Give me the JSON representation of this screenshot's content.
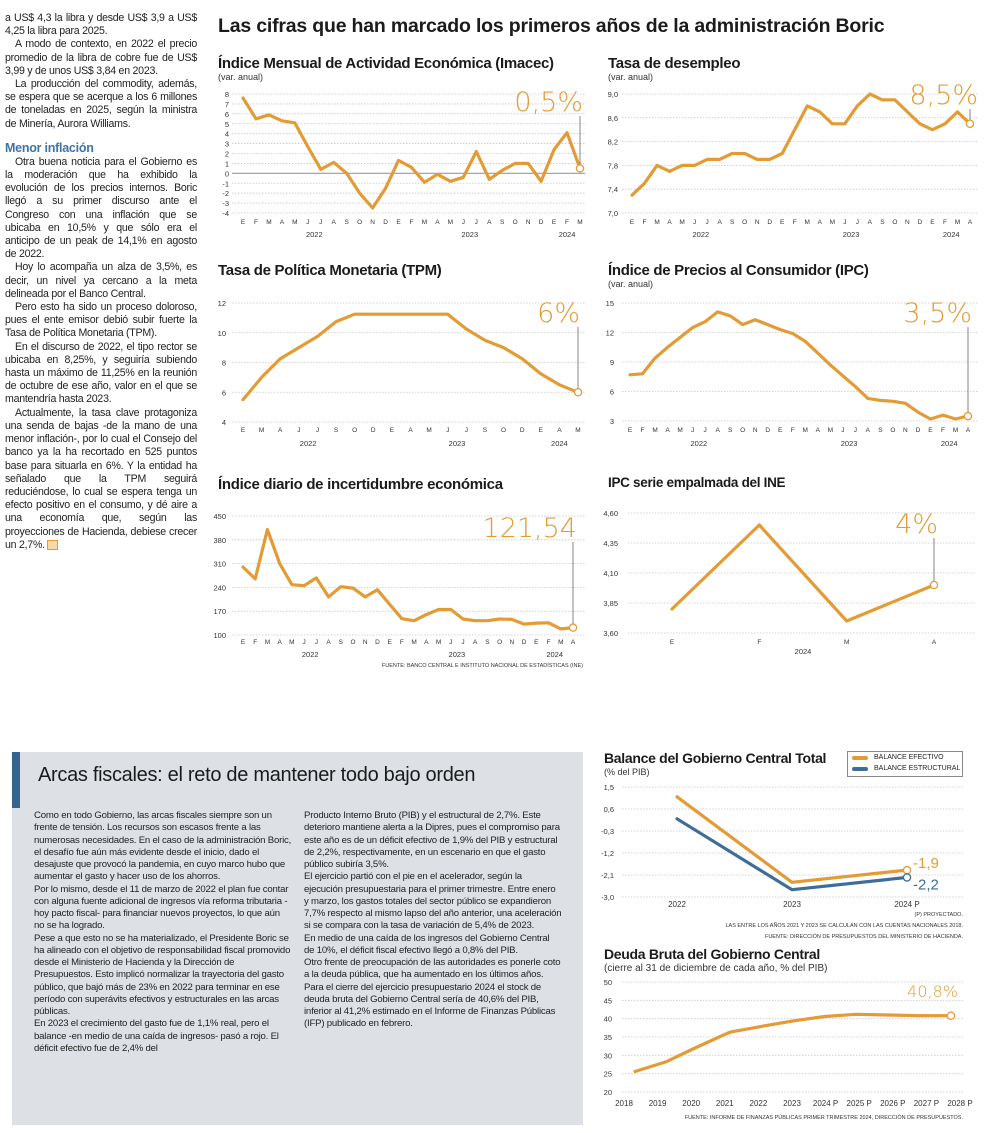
{
  "article": {
    "main_title": "Las cifras que han marcado los primeros años de la administración Boric",
    "left_column": {
      "paragraphs_top": [
        "a US$ 4,3 la libra y desde US$ 3,9 a US$ 4,25 la libra para 2025.",
        "A modo de contexto, en 2022 el precio promedio de la libra de cobre fue de US$ 3,99 y de unos US$ 3,84 en 2023.",
        "La producción del commodity, además, se espera que se acerque a los 6 millones de toneladas en 2025, según la ministra de Minería, Aurora Williams."
      ],
      "subheading": "Menor inflación",
      "paragraphs_bottom": [
        "Otra buena noticia para el Gobierno es la moderación que ha exhibido la evolución de los precios internos. Boric llegó a su primer discurso ante el Congreso con una inflación que se ubicaba en 10,5% y que sólo era el anticipo de un peak de 14,1% en agosto de 2022.",
        "Hoy lo acompaña un alza de 3,5%, es decir, un nivel ya cercano a la meta delineada por el Banco Central.",
        "Pero esto ha sido un proceso doloroso, pues el ente emisor debió subir fuerte la Tasa de Política Monetaria (TPM).",
        "En el discurso de 2022, el tipo rector se ubicaba en 8,25%, y seguiría subiendo hasta un máximo de 11,25% en la reunión de octubre de ese año, valor en el que se mantendría hasta 2023.",
        "Actualmente, la tasa clave protagoniza una senda de bajas -de la mano de una menor inflación-, por lo cual el Consejo del banco ya la ha recortado en 525 puntos base para situarla en 6%. Y la entidad ha señalado que la TPM seguirá reduciéndose, lo cual se espera tenga un efecto positivo en el consumo, y dé aire a una economía que, según las proyecciones de Hacienda, debiese crecer un 2,7%."
      ]
    },
    "fiscal": {
      "title": "Arcas fiscales: el reto de mantener todo bajo orden",
      "col1": [
        "Como en todo Gobierno, las arcas fiscales siempre son un frente de tensión. Los recursos son escasos frente a las numerosas necesidades. En el caso de la administración Boric, el desafío fue aún más evidente desde el inicio, dado el desajuste que provocó la pandemia, en cuyo marco hubo que aumentar el gasto y hacer uso de los ahorros.",
        "Por lo mismo, desde el 11 de marzo de 2022 el plan fue contar con alguna fuente adicional de ingresos vía reforma tributaria -hoy pacto fiscal- para financiar nuevos proyectos, lo que aún no se ha logrado.",
        "Pese a que esto no se ha materializado, el Presidente Boric se ha alineado con el objetivo de responsabilidad fiscal promovido desde el Ministerio de Hacienda y la Dirección de Presupuestos. Esto implicó normalizar la trayectoria del gasto público, que bajó más de 23% en 2022 para terminar en ese período con superávits efectivos y estructurales en las arcas públicas.",
        "En 2023 el crecimiento del gasto fue de 1,1% real, pero el balance -en medio de una caída de ingresos- pasó a rojo. El déficit efectivo fue de 2,4% del"
      ],
      "col2": [
        "Producto Interno Bruto (PIB) y el estructural de 2,7%. Este deterioro mantiene alerta a la Dipres, pues el compromiso para este año es de un déficit efectivo de 1,9% del PIB y estructural de 2,2%, respectivamente, en un escenario en que el gasto público subiría 3,5%.",
        "El ejercicio partió con el pie en el acelerador, según la ejecución presupuestaria para el primer trimestre. Entre enero y marzo, los gastos totales del sector público se expandieron 7,7% respecto al mismo lapso del año anterior, una aceleración si se compara con la tasa de variación de 5,4% de 2023.",
        "En medio de una caída de los ingresos del Gobierno Central de 10%, el déficit fiscal efectivo llegó a 0,8% del PIB.",
        "Otro frente de preocupación de las autoridades es ponerle coto a la deuda pública, que ha aumentado en los últimos años.",
        "Para el cierre del ejercicio presupuestario 2024 el stock de deuda bruta del Gobierno Central sería de 40,6% del PIB, inferior al 41,2% estimado en el Informe de Finanzas Públicas (IFP) publicado en febrero."
      ]
    }
  },
  "colors": {
    "orange": "#e39b36",
    "blue": "#3e6d99",
    "box": "#dde1e6",
    "accent_heading": "#3d74a6"
  },
  "chart_data": [
    {
      "type": "line",
      "title": "Índice Mensual de Actividad Económica (Imacec)",
      "subtitle": "(var. anual)",
      "ylim": [
        -4,
        8
      ],
      "ytick_labels": [
        "8",
        "7",
        "6",
        "5",
        "4",
        "3",
        "2",
        "1",
        "0",
        "-1",
        "-2",
        "-3",
        "-4"
      ],
      "categories": [
        "E",
        "F",
        "M",
        "A",
        "M",
        "J",
        "J",
        "A",
        "S",
        "O",
        "N",
        "D",
        "E",
        "F",
        "M",
        "A",
        "M",
        "J",
        "J",
        "A",
        "S",
        "O",
        "N",
        "D",
        "E",
        "F",
        "M"
      ],
      "x_groups": [
        {
          "label": "2022",
          "from": 0,
          "to": 11
        },
        {
          "label": "2023",
          "from": 12,
          "to": 23
        },
        {
          "label": "2024",
          "from": 24,
          "to": 26
        }
      ],
      "series": [
        {
          "values": [
            7.6,
            5.5,
            5.9,
            5.3,
            5.1,
            2.7,
            0.4,
            1.1,
            0.0,
            -2.0,
            -3.5,
            -1.5,
            1.3,
            0.6,
            -0.9,
            -0.1,
            -0.8,
            -0.4,
            2.2,
            -0.6,
            0.3,
            1.0,
            1.0,
            -0.8,
            2.4,
            4.1,
            0.5
          ],
          "color": "#e39b36"
        }
      ],
      "callout": "0,5%",
      "grid": true
    },
    {
      "type": "line",
      "title": "Tasa de desempleo",
      "subtitle": "(var. anual)",
      "ylim": [
        7.0,
        9.0
      ],
      "ytick_labels": [
        "9,0",
        "8,6",
        "8,2",
        "7,8",
        "7,4",
        "7,0"
      ],
      "categories": [
        "E",
        "F",
        "M",
        "A",
        "M",
        "J",
        "J",
        "A",
        "S",
        "O",
        "N",
        "D",
        "E",
        "F",
        "M",
        "A",
        "M",
        "J",
        "J",
        "A",
        "S",
        "O",
        "N",
        "D",
        "E",
        "F",
        "M",
        "A"
      ],
      "x_groups": [
        {
          "label": "2022",
          "from": 0,
          "to": 11
        },
        {
          "label": "2023",
          "from": 12,
          "to": 23
        },
        {
          "label": "2024",
          "from": 24,
          "to": 27
        }
      ],
      "series": [
        {
          "values": [
            7.3,
            7.5,
            7.8,
            7.7,
            7.8,
            7.8,
            7.9,
            7.9,
            8.0,
            8.0,
            7.9,
            7.9,
            8.0,
            8.4,
            8.8,
            8.7,
            8.5,
            8.5,
            8.8,
            9.0,
            8.9,
            8.9,
            8.7,
            8.5,
            8.4,
            8.5,
            8.7,
            8.5
          ],
          "color": "#e39b36"
        }
      ],
      "callout": "8,5%",
      "grid": true
    },
    {
      "type": "line",
      "title": "Tasa de Política Monetaria (TPM)",
      "subtitle": "",
      "ylim": [
        4,
        12
      ],
      "ytick_labels": [
        "12",
        "10",
        "8",
        "6",
        "4"
      ],
      "categories": [
        "E",
        "M",
        "A",
        "J",
        "J",
        "S",
        "O",
        "D",
        "E",
        "A",
        "M",
        "J",
        "J",
        "S",
        "O",
        "D",
        "E",
        "A",
        "M"
      ],
      "x_groups": [
        {
          "label": "2022",
          "from": 0,
          "to": 7
        },
        {
          "label": "2023",
          "from": 8,
          "to": 15
        },
        {
          "label": "2024",
          "from": 16,
          "to": 18
        }
      ],
      "series": [
        {
          "values": [
            5.5,
            7.0,
            8.25,
            9.0,
            9.75,
            10.75,
            11.25,
            11.25,
            11.25,
            11.25,
            11.25,
            11.25,
            10.25,
            9.5,
            9.0,
            8.25,
            7.25,
            6.5,
            6.0
          ],
          "color": "#e39b36"
        }
      ],
      "callout": "6%",
      "grid": true
    },
    {
      "type": "line",
      "title": "Índice de Precios al Consumidor (IPC)",
      "subtitle": "(var. anual)",
      "ylim": [
        3,
        15
      ],
      "ytick_labels": [
        "15",
        "12",
        "9",
        "6",
        "3"
      ],
      "categories": [
        "E",
        "F",
        "M",
        "A",
        "M",
        "J",
        "J",
        "A",
        "S",
        "O",
        "N",
        "D",
        "E",
        "F",
        "M",
        "A",
        "M",
        "J",
        "J",
        "A",
        "S",
        "O",
        "N",
        "D",
        "E",
        "F",
        "M",
        "A"
      ],
      "x_groups": [
        {
          "label": "2022",
          "from": 0,
          "to": 11
        },
        {
          "label": "2023",
          "from": 12,
          "to": 23
        },
        {
          "label": "2024",
          "from": 24,
          "to": 27
        }
      ],
      "series": [
        {
          "values": [
            7.7,
            7.8,
            9.4,
            10.5,
            11.5,
            12.5,
            13.1,
            14.1,
            13.7,
            12.8,
            13.3,
            12.8,
            12.3,
            11.9,
            11.1,
            9.9,
            8.7,
            7.6,
            6.5,
            5.3,
            5.1,
            5.0,
            4.8,
            3.9,
            3.2,
            3.6,
            3.2,
            3.5
          ],
          "color": "#e39b36"
        }
      ],
      "callout": "3,5%",
      "grid": true
    },
    {
      "type": "line",
      "title": "Índice diario de incertidumbre económica",
      "subtitle": "",
      "ylim": [
        100,
        450
      ],
      "ytick_labels": [
        "450",
        "380",
        "310",
        "240",
        "170",
        "100"
      ],
      "categories": [
        "E",
        "F",
        "M",
        "A",
        "M",
        "J",
        "J",
        "A",
        "S",
        "O",
        "N",
        "D",
        "E",
        "F",
        "M",
        "A",
        "M",
        "J",
        "J",
        "A",
        "S",
        "O",
        "N",
        "D",
        "E",
        "F",
        "M",
        "A"
      ],
      "x_groups": [
        {
          "label": "2022",
          "from": 0,
          "to": 11
        },
        {
          "label": "2023",
          "from": 12,
          "to": 23
        },
        {
          "label": "2024",
          "from": 24,
          "to": 27
        }
      ],
      "series": [
        {
          "values": [
            300,
            265,
            410,
            310,
            248,
            245,
            268,
            212,
            242,
            238,
            212,
            233,
            190,
            148,
            142,
            160,
            175,
            175,
            147,
            142,
            142,
            147,
            146,
            132,
            135,
            136,
            118,
            121.54
          ],
          "color": "#e39b36"
        }
      ],
      "callout": "121,54",
      "source": "FUENTE: BANCO CENTRAL E INSTITUTO NACIONAL DE ESTADÍSTICAS (INE)",
      "grid": true
    },
    {
      "type": "line",
      "title": "IPC serie empalmada del INE",
      "subtitle": "",
      "ylim": [
        3.6,
        4.6
      ],
      "ytick_labels": [
        "4,60",
        "4,35",
        "4,10",
        "3,85",
        "3,60"
      ],
      "categories": [
        "E",
        "F",
        "M",
        "A"
      ],
      "x_groups": [
        {
          "label": "2024",
          "from": 0,
          "to": 3
        }
      ],
      "series": [
        {
          "values": [
            3.8,
            4.5,
            3.7,
            4.0
          ],
          "color": "#e39b36"
        }
      ],
      "callout": "4%",
      "grid": true
    },
    {
      "type": "line",
      "title": "Balance del Gobierno Central Total",
      "subtitle": "(% del PIB)",
      "ylim": [
        -3.0,
        1.5
      ],
      "ytick_labels": [
        "1,5",
        "0,6",
        "-0,3",
        "-1,2",
        "-2,1",
        "-3,0"
      ],
      "categories": [
        "2022",
        "2023",
        "2024 P"
      ],
      "series": [
        {
          "name": "BALANCE EFECTIVO",
          "values": [
            1.1,
            -2.4,
            -1.9
          ],
          "color": "#e39b36",
          "end_label": "-1,9"
        },
        {
          "name": "BALANCE ESTRUCTURAL",
          "values": [
            0.2,
            -2.7,
            -2.2
          ],
          "color": "#3e6d99",
          "end_label": "-2,2"
        }
      ],
      "legend_position": "top-right",
      "notes": [
        "(P) PROYECTADO.",
        "LAS ENTRE LOS AÑOS 2021 Y 2023 SE CALCULAN  CON LAS CUENTAS NACIONALES 2018.",
        "FUENTE: DIRECCIÓN DE PRESUPUESTOS DEL MINISTERIO DE HACIENDA."
      ],
      "grid": true
    },
    {
      "type": "line",
      "title": "Deuda Bruta del Gobierno Central",
      "subtitle": "(cierre al 31 de diciembre de cada año, % del PIB)",
      "ylim": [
        20,
        50
      ],
      "ytick_labels": [
        "50",
        "45",
        "40",
        "35",
        "30",
        "25",
        "20"
      ],
      "categories": [
        "2018",
        "2019",
        "2020",
        "2021",
        "2022",
        "2023",
        "2024 P",
        "2025 P",
        "2026 P",
        "2027 P",
        "2028 P"
      ],
      "series": [
        {
          "values": [
            25.6,
            28.3,
            32.4,
            36.3,
            37.9,
            39.4,
            40.6,
            41.2,
            41.0,
            40.8,
            40.8
          ],
          "color": "#e39b36"
        }
      ],
      "callout": "40,8%",
      "source": "FUENTE: INFORME DE FINANZAS PÚBLICAS PRIMER TRIMESTRE 2024, DIRECCIÓN DE PRESUPUESTOS.",
      "grid": true
    }
  ]
}
